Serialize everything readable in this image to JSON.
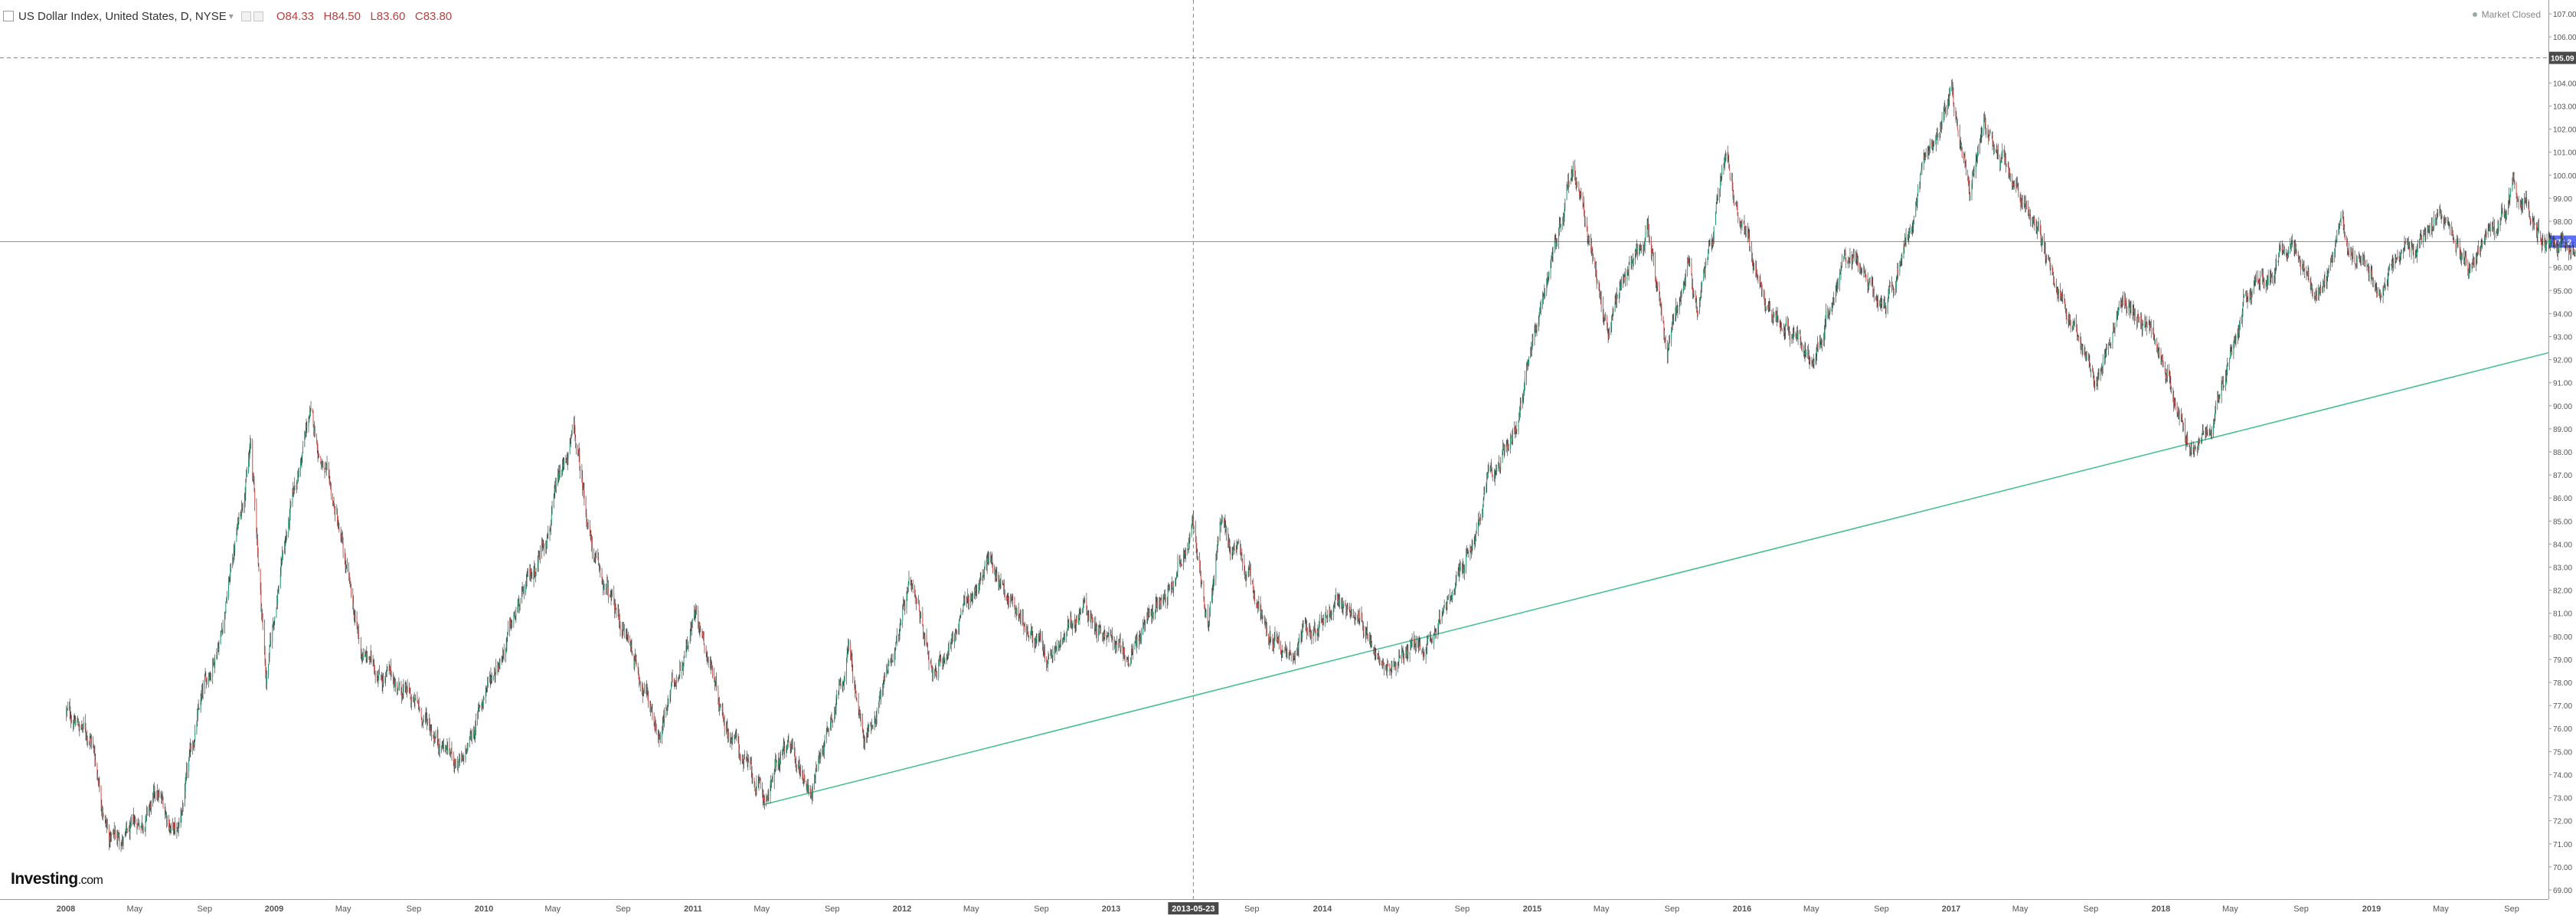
{
  "legend": {
    "title": "US Dollar Index, United States, D, NYSE",
    "o_label": "O",
    "o": "84.33",
    "h_label": "H",
    "h": "84.50",
    "l_label": "L",
    "l": "83.60",
    "c_label": "C",
    "c": "83.80"
  },
  "market_status": "Market Closed",
  "logo": {
    "main": "Investing",
    "suffix": ".com"
  },
  "colors": {
    "up": "#1e9e6e",
    "down": "#d9534f",
    "trendline": "#3dbf8a",
    "hline": "#7b8ff0",
    "price_tag": "#5b6ef5",
    "crosshair": "#888888"
  },
  "chart_data": {
    "type": "candlestick",
    "title": "US Dollar Index, United States, D, NYSE",
    "x_tick_labels": [
      "2008",
      "May",
      "Sep",
      "2009",
      "May",
      "Sep",
      "2010",
      "May",
      "Sep",
      "2011",
      "May",
      "Sep",
      "2012",
      "May",
      "Sep",
      "2013",
      "2013-05-23",
      "Sep",
      "2014",
      "May",
      "Sep",
      "2015",
      "May",
      "Sep",
      "2016",
      "May",
      "Sep",
      "2017",
      "May",
      "Sep",
      "2018",
      "May",
      "Sep",
      "2019",
      "May",
      "Sep"
    ],
    "y_tick_labels": [
      "69.00",
      "70.00",
      "71.00",
      "72.00",
      "73.00",
      "74.00",
      "75.00",
      "76.00",
      "77.00",
      "78.00",
      "79.00",
      "80.00",
      "81.00",
      "82.00",
      "83.00",
      "84.00",
      "85.00",
      "86.00",
      "87.00",
      "88.00",
      "89.00",
      "90.00",
      "91.00",
      "92.00",
      "93.00",
      "94.00",
      "95.00",
      "96.00",
      "97.00",
      "98.00",
      "99.00",
      "100.00",
      "101.00",
      "102.00",
      "103.00",
      "104.00",
      "105.00",
      "106.00",
      "107.00"
    ],
    "ylim": [
      68.6,
      107.6
    ],
    "xlim": [
      "2008-01-01",
      "2019-12-31"
    ],
    "crosshair": {
      "date": "2013-05-23",
      "price": "105.09"
    },
    "last_price": "97.12",
    "trendline": {
      "start": [
        "2011-05-04",
        72.7
      ],
      "end": [
        "2019-12-31",
        92.3
      ]
    },
    "key_points": [
      [
        "2008-01-02",
        76.7
      ],
      [
        "2008-02-15",
        75.6
      ],
      [
        "2008-03-17",
        71.3
      ],
      [
        "2008-04-22",
        71.3
      ],
      [
        "2008-06-10",
        73.0
      ],
      [
        "2008-07-15",
        71.3
      ],
      [
        "2008-08-20",
        76.5
      ],
      [
        "2008-10-01",
        80.5
      ],
      [
        "2008-11-21",
        88.3
      ],
      [
        "2008-12-18",
        78.2
      ],
      [
        "2009-01-15",
        83.5
      ],
      [
        "2009-03-04",
        89.6
      ],
      [
        "2009-04-20",
        85.0
      ],
      [
        "2009-06-01",
        79.2
      ],
      [
        "2009-08-05",
        77.9
      ],
      [
        "2009-11-25",
        74.3
      ],
      [
        "2010-01-05",
        77.8
      ],
      [
        "2010-03-25",
        82.5
      ],
      [
        "2010-06-07",
        88.7
      ],
      [
        "2010-07-15",
        83.0
      ],
      [
        "2010-09-15",
        79.5
      ],
      [
        "2010-11-04",
        75.8
      ],
      [
        "2011-01-07",
        81.3
      ],
      [
        "2011-02-25",
        76.5
      ],
      [
        "2011-05-04",
        72.8
      ],
      [
        "2011-06-10",
        75.2
      ],
      [
        "2011-07-27",
        73.5
      ],
      [
        "2011-09-30",
        79.5
      ],
      [
        "2011-10-27",
        75.2
      ],
      [
        "2012-01-13",
        81.8
      ],
      [
        "2012-02-29",
        78.5
      ],
      [
        "2012-06-01",
        83.3
      ],
      [
        "2012-09-14",
        78.8
      ],
      [
        "2012-11-15",
        81.2
      ],
      [
        "2013-02-01",
        79.0
      ],
      [
        "2013-05-22",
        84.6
      ],
      [
        "2013-06-18",
        80.5
      ],
      [
        "2013-07-09",
        84.8
      ],
      [
        "2013-10-25",
        79.2
      ],
      [
        "2014-01-24",
        81.5
      ],
      [
        "2014-05-06",
        78.9
      ],
      [
        "2014-07-01",
        80.0
      ],
      [
        "2014-09-01",
        82.5
      ],
      [
        "2014-10-10",
        86.0
      ],
      [
        "2014-12-08",
        89.5
      ],
      [
        "2015-01-23",
        95.0
      ],
      [
        "2015-03-13",
        100.4
      ],
      [
        "2015-05-14",
        93.1
      ],
      [
        "2015-07-20",
        98.0
      ],
      [
        "2015-08-24",
        92.6
      ],
      [
        "2015-09-30",
        96.5
      ],
      [
        "2015-10-15",
        93.8
      ],
      [
        "2015-12-02",
        100.5
      ],
      [
        "2016-02-11",
        94.8
      ],
      [
        "2016-05-03",
        91.9
      ],
      [
        "2016-06-27",
        96.5
      ],
      [
        "2016-09-08",
        94.2
      ],
      [
        "2016-11-14",
        100.0
      ],
      [
        "2017-01-03",
        103.8
      ],
      [
        "2017-02-02",
        99.5
      ],
      [
        "2017-03-01",
        102.0
      ],
      [
        "2017-05-10",
        99.0
      ],
      [
        "2017-06-30",
        95.6
      ],
      [
        "2017-09-08",
        91.1
      ],
      [
        "2017-10-27",
        95.0
      ],
      [
        "2017-12-20",
        93.0
      ],
      [
        "2018-02-16",
        88.3
      ],
      [
        "2018-03-27",
        89.2
      ],
      [
        "2018-05-30",
        95.0
      ],
      [
        "2018-08-15",
        96.9
      ],
      [
        "2018-10-01",
        95.0
      ],
      [
        "2018-11-12",
        97.6
      ],
      [
        "2019-01-10",
        95.1
      ],
      [
        "2019-04-25",
        98.3
      ],
      [
        "2019-06-25",
        95.8
      ],
      [
        "2019-09-03",
        99.4
      ],
      [
        "2019-10-31",
        97.1
      ],
      [
        "2019-12-31",
        97.1
      ]
    ]
  }
}
